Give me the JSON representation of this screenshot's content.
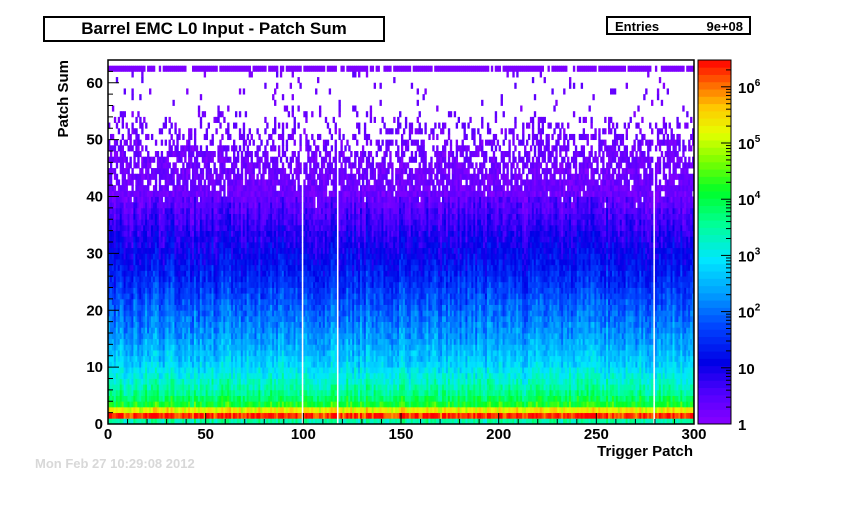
{
  "title": "Barrel EMC L0 Input - Patch Sum",
  "stats": {
    "entries_label": "Entries",
    "entries_value": "9e+08"
  },
  "footer": "Mon Feb 27 10:29:08 2012",
  "chart_data": {
    "type": "heatmap",
    "title": "Barrel EMC L0 Input - Patch Sum",
    "xlabel": "Trigger Patch",
    "ylabel": "Patch Sum",
    "xlim": [
      0,
      300
    ],
    "ylim": [
      0,
      64
    ],
    "x_ticks": [
      0,
      50,
      100,
      150,
      200,
      250,
      300
    ],
    "y_ticks": [
      0,
      10,
      20,
      30,
      40,
      50,
      60
    ],
    "z_scale": "log",
    "z_range": [
      1,
      3000000
    ],
    "colorbar_ticks": [
      {
        "value": 1,
        "label": "1"
      },
      {
        "value": 10,
        "label": "10"
      },
      {
        "value": 100,
        "label": "10",
        "exp": "2"
      },
      {
        "value": 1000,
        "label": "10",
        "exp": "3"
      },
      {
        "value": 10000,
        "label": "10",
        "exp": "4"
      },
      {
        "value": 100000,
        "label": "10",
        "exp": "5"
      },
      {
        "value": 1000000,
        "label": "10",
        "exp": "6"
      }
    ],
    "count_profile": [
      {
        "patch_sum": 0,
        "count": 3000
      },
      {
        "patch_sum": 1,
        "count": 2000000
      },
      {
        "patch_sum": 2,
        "count": 200000
      },
      {
        "patch_sum": 3,
        "count": 15000
      },
      {
        "patch_sum": 5,
        "count": 4000
      },
      {
        "patch_sum": 10,
        "count": 600
      },
      {
        "patch_sum": 15,
        "count": 200
      },
      {
        "patch_sum": 20,
        "count": 80
      },
      {
        "patch_sum": 25,
        "count": 30
      },
      {
        "patch_sum": 30,
        "count": 12
      },
      {
        "patch_sum": 35,
        "count": 5
      },
      {
        "patch_sum": 40,
        "count": 2
      },
      {
        "patch_sum": 50,
        "count": 1
      },
      {
        "patch_sum": 62,
        "count": 1
      }
    ],
    "overflow_row": {
      "patch_sum": 62,
      "count": 1
    },
    "dead_patches": [
      99,
      117,
      279
    ],
    "grid": false
  }
}
